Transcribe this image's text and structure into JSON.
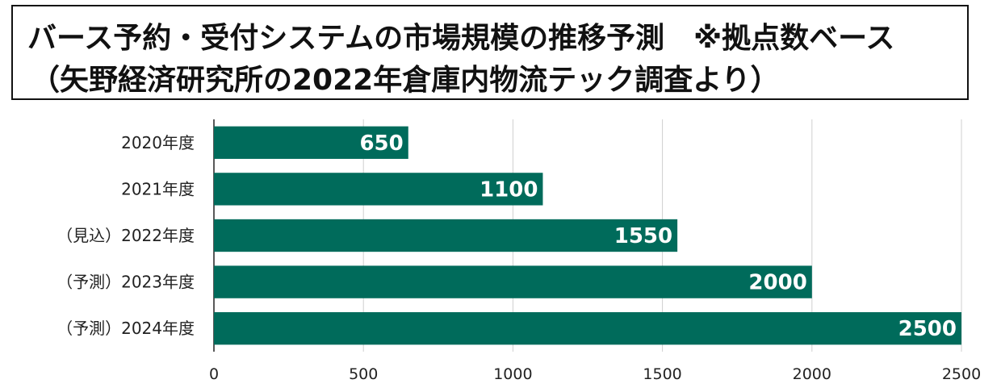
{
  "title": {
    "line1": "バース予約・受付システムの市場規模の推移予測　※拠点数ベース",
    "line2": "（矢野経済研究所の2022年倉庫内物流テック調査より）"
  },
  "chart_data": {
    "type": "bar",
    "orientation": "horizontal",
    "categories": [
      "2020年度",
      "2021年度",
      "（見込）2022年度",
      "（予測）2023年度",
      "（予測）2024年度"
    ],
    "values": [
      650,
      1100,
      1550,
      2000,
      2500
    ],
    "xlim": [
      0,
      2500
    ],
    "x_ticks": [
      0,
      500,
      1000,
      1500,
      2000,
      2500
    ],
    "grid": true,
    "bar_color": "#006B5B",
    "data_labels": [
      "650",
      "1100",
      "1550",
      "2000",
      "2500"
    ]
  }
}
